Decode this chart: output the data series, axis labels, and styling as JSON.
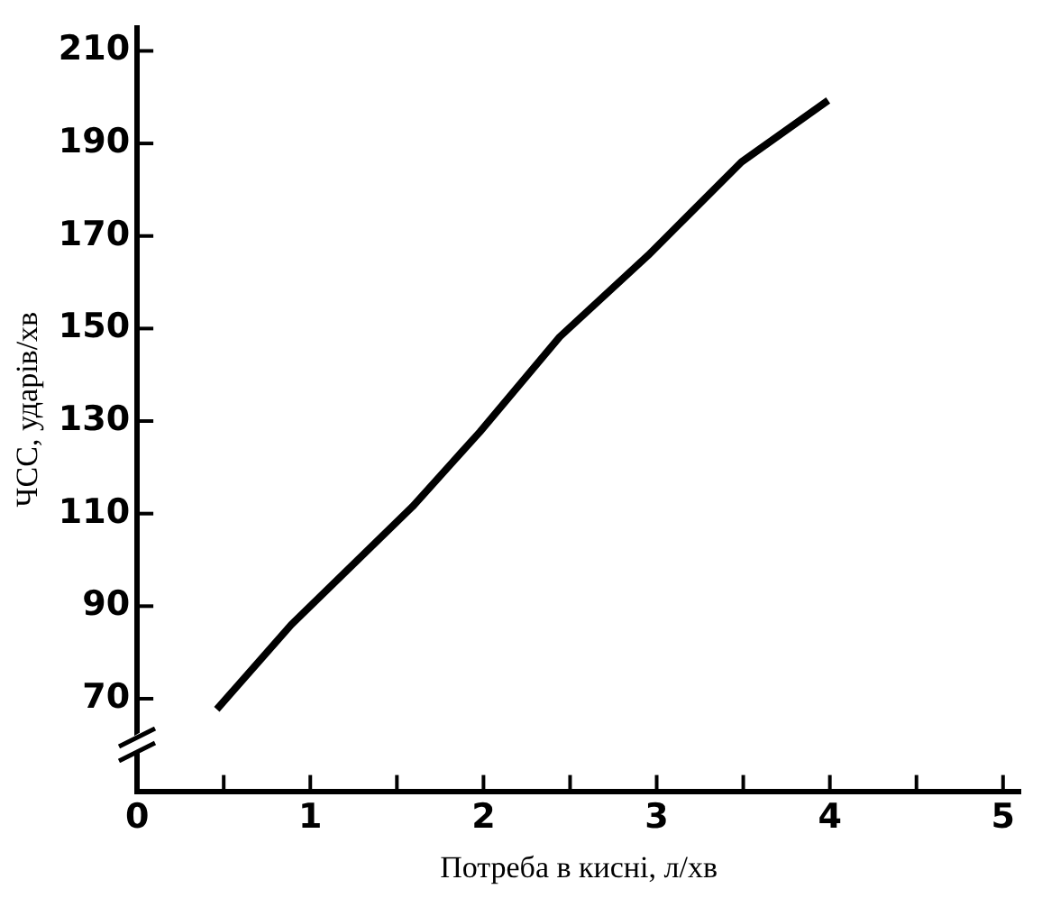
{
  "chart_data": {
    "type": "line",
    "xlabel": "Потреба в кисні, л/хв",
    "ylabel": "ЧСС, ударів/хв",
    "series": [
      {
        "color": "#000000",
        "x": [
          0.46,
          0.89,
          1.59,
          1.98,
          2.44,
          2.95,
          3.49,
          3.99
        ],
        "values": [
          67.7,
          86,
          111.5,
          127.7,
          148.2,
          165.8,
          186,
          199.3
        ]
      }
    ],
    "xlim": [
      0,
      5.1
    ],
    "xticks": [
      0,
      {
        "value": 0.5,
        "label": null
      },
      1,
      {
        "value": 1.5,
        "label": null
      },
      2,
      {
        "value": 2.5,
        "label": null
      },
      3,
      {
        "value": 3.5,
        "label": null
      },
      4,
      {
        "value": 4.5,
        "label": null
      },
      5
    ],
    "ylim": [
      50,
      215
    ],
    "yticks": [
      70,
      90,
      110,
      130,
      150,
      170,
      190,
      210
    ],
    "grid": false,
    "legend": false,
    "marker": "none",
    "line_style": "solid"
  }
}
